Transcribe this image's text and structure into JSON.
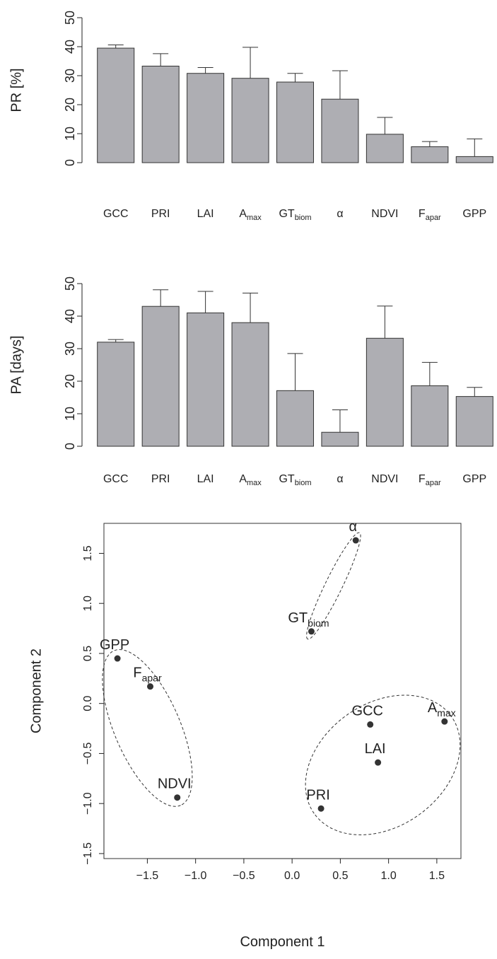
{
  "chart_data": [
    {
      "type": "bar",
      "ylabel": "PR [%]",
      "ylim": [
        0,
        50
      ],
      "yticks": [
        0,
        10,
        20,
        30,
        40,
        50
      ],
      "categories": [
        {
          "base": "GCC",
          "sub": ""
        },
        {
          "base": "PRI",
          "sub": ""
        },
        {
          "base": "LAI",
          "sub": ""
        },
        {
          "base": "A",
          "sub": "max"
        },
        {
          "base": "GT",
          "sub": "biom"
        },
        {
          "base": "α",
          "sub": ""
        },
        {
          "base": "NDVI",
          "sub": ""
        },
        {
          "base": "F",
          "sub": "apar"
        },
        {
          "base": "GPP",
          "sub": ""
        }
      ],
      "values": [
        39.5,
        33.3,
        30.8,
        29.1,
        27.8,
        21.9,
        9.8,
        5.5,
        2.1
      ],
      "error_upper": [
        40.6,
        37.6,
        32.8,
        39.8,
        30.8,
        31.7,
        15.6,
        7.3,
        8.2
      ]
    },
    {
      "type": "bar",
      "ylabel": "PA [days]",
      "ylim": [
        0,
        50
      ],
      "yticks": [
        0,
        10,
        20,
        30,
        40,
        50
      ],
      "categories": [
        {
          "base": "GCC",
          "sub": ""
        },
        {
          "base": "PRI",
          "sub": ""
        },
        {
          "base": "LAI",
          "sub": ""
        },
        {
          "base": "A",
          "sub": "max"
        },
        {
          "base": "GT",
          "sub": "biom"
        },
        {
          "base": "α",
          "sub": ""
        },
        {
          "base": "NDVI",
          "sub": ""
        },
        {
          "base": "F",
          "sub": "apar"
        },
        {
          "base": "GPP",
          "sub": ""
        }
      ],
      "values": [
        32.0,
        43.0,
        41.0,
        38.0,
        17.1,
        4.3,
        33.2,
        18.6,
        15.3
      ],
      "error_upper": [
        32.8,
        48.1,
        47.6,
        47.1,
        28.5,
        11.2,
        43.1,
        25.8,
        18.1
      ]
    },
    {
      "type": "scatter",
      "xlabel": "Component 1",
      "ylabel": "Component 2",
      "xlim": [
        -1.95,
        1.75
      ],
      "ylim": [
        -1.55,
        1.8
      ],
      "xticks": [
        -1.5,
        -1.0,
        -0.5,
        0.0,
        0.5,
        1.0,
        1.5
      ],
      "xtick_labels": [
        "−1.5",
        "−1.0",
        "−0.5",
        "0.0",
        "0.5",
        "1.0",
        "1.5"
      ],
      "yticks": [
        -1.5,
        -1.0,
        -0.5,
        0.0,
        0.5,
        1.0,
        1.5
      ],
      "ytick_labels": [
        "−1.5",
        "−1.0",
        "−0.5",
        "0.0",
        "0.5",
        "1.0",
        "1.5"
      ],
      "points": [
        {
          "base": "α",
          "sub": "",
          "x": 0.66,
          "y": 1.63
        },
        {
          "base": "GT",
          "sub": "biom",
          "x": 0.2,
          "y": 0.72
        },
        {
          "base": "GPP",
          "sub": "",
          "x": -1.81,
          "y": 0.45
        },
        {
          "base": "F",
          "sub": "apar",
          "x": -1.47,
          "y": 0.17
        },
        {
          "base": "NDVI",
          "sub": "",
          "x": -1.19,
          "y": -0.94
        },
        {
          "base": "GCC",
          "sub": "",
          "x": 0.81,
          "y": -0.21
        },
        {
          "base": "A",
          "sub": "max",
          "x": 1.58,
          "y": -0.18
        },
        {
          "base": "LAI",
          "sub": "",
          "x": 0.89,
          "y": -0.59
        },
        {
          "base": "PRI",
          "sub": "",
          "x": 0.3,
          "y": -1.05
        }
      ],
      "clusters": [
        [
          "α",
          "GT"
        ],
        [
          "GPP",
          "F",
          "NDVI"
        ],
        [
          "GCC",
          "A",
          "LAI",
          "PRI"
        ]
      ]
    }
  ]
}
